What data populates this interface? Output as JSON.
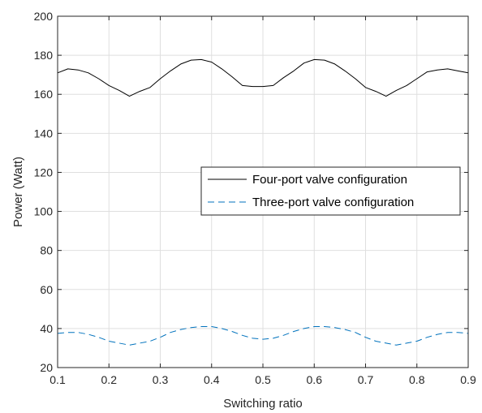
{
  "chart_data": {
    "type": "line",
    "title": "",
    "xlabel": "Switching ratio",
    "ylabel": "Power (Watt)",
    "xlim": [
      0.1,
      0.9
    ],
    "ylim": [
      20,
      200
    ],
    "xticks": [
      "0.1",
      "0.2",
      "0.3",
      "0.4",
      "0.5",
      "0.6",
      "0.7",
      "0.8",
      "0.9"
    ],
    "yticks": [
      "20",
      "40",
      "60",
      "80",
      "100",
      "120",
      "140",
      "160",
      "180",
      "200"
    ],
    "grid": true,
    "legend_position": "center-right",
    "series": [
      {
        "name": "Four-port valve configuration",
        "color": "#000000",
        "dash": "solid",
        "x": [
          0.1,
          0.12,
          0.14,
          0.16,
          0.18,
          0.2,
          0.22,
          0.24,
          0.26,
          0.28,
          0.3,
          0.32,
          0.34,
          0.36,
          0.38,
          0.4,
          0.42,
          0.44,
          0.46,
          0.48,
          0.5,
          0.52,
          0.54,
          0.56,
          0.58,
          0.6,
          0.62,
          0.64,
          0.66,
          0.68,
          0.7,
          0.72,
          0.74,
          0.76,
          0.78,
          0.8,
          0.82,
          0.84,
          0.86,
          0.88,
          0.9
        ],
        "y": [
          171,
          173,
          172.5,
          171,
          168,
          164.5,
          162,
          159,
          161.5,
          163.5,
          168,
          172,
          175.5,
          177.5,
          177.8,
          176.5,
          173,
          169,
          164.5,
          164,
          164,
          164.5,
          168.5,
          172,
          176,
          177.8,
          177.5,
          175.5,
          172,
          168,
          163.5,
          161.5,
          159,
          162,
          164.5,
          168,
          171.5,
          172.5,
          173,
          172,
          171
        ]
      },
      {
        "name": "Three-port valve configuration",
        "color": "#0072BD",
        "dash": "dashed",
        "x": [
          0.1,
          0.12,
          0.14,
          0.16,
          0.18,
          0.2,
          0.22,
          0.24,
          0.26,
          0.28,
          0.3,
          0.32,
          0.34,
          0.36,
          0.38,
          0.4,
          0.42,
          0.44,
          0.46,
          0.48,
          0.5,
          0.52,
          0.54,
          0.56,
          0.58,
          0.6,
          0.62,
          0.64,
          0.66,
          0.68,
          0.7,
          0.72,
          0.74,
          0.76,
          0.78,
          0.8,
          0.82,
          0.84,
          0.86,
          0.88,
          0.9
        ],
        "y": [
          37.5,
          38,
          38,
          37,
          35.5,
          33.5,
          32.5,
          31.5,
          32.5,
          33.5,
          35.5,
          38,
          39.5,
          40.5,
          41,
          41,
          40,
          38.5,
          36.5,
          35,
          34.5,
          35,
          36.5,
          38.5,
          40,
          41,
          41,
          40.5,
          39.5,
          38,
          35.5,
          33.5,
          32.5,
          31.5,
          32.5,
          33.5,
          35.5,
          37,
          38,
          38,
          37.5
        ]
      }
    ]
  }
}
